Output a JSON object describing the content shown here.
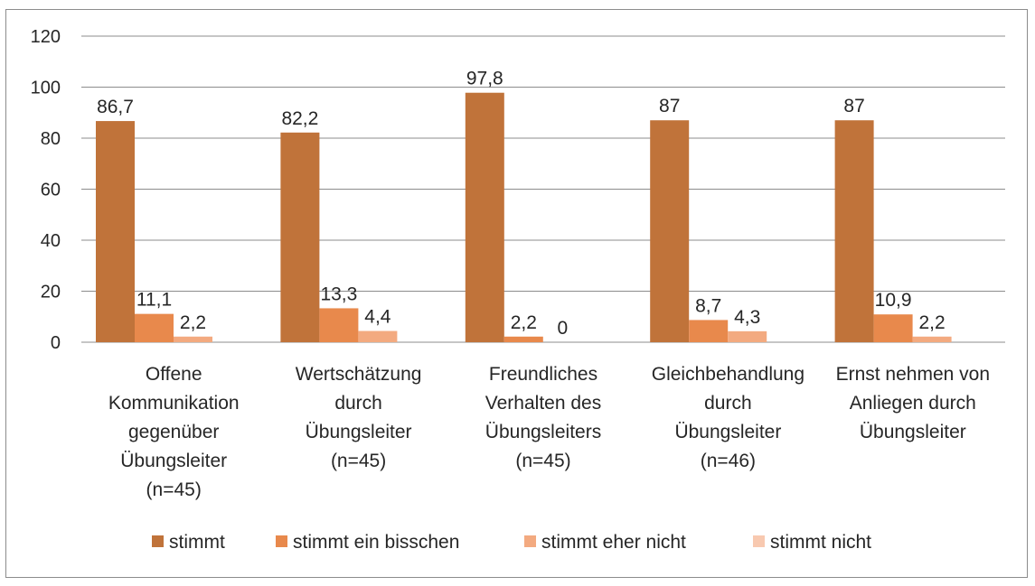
{
  "chart_data": {
    "type": "bar",
    "title": "",
    "xlabel": "",
    "ylabel": "",
    "ylim": [
      0,
      120
    ],
    "yticks": [
      0,
      20,
      40,
      60,
      80,
      100,
      120
    ],
    "grid": true,
    "legend_position": "bottom",
    "categories": [
      [
        "Offene",
        "Kommunikation",
        "gegenüber",
        "Übungsleiter",
        "(n=45)"
      ],
      [
        "Wertschätzung",
        "durch",
        "Übungsleiter",
        "(n=45)"
      ],
      [
        "Freundliches",
        "Verhalten des",
        "Übungsleiters",
        "(n=45)"
      ],
      [
        "Gleichbehandlung",
        "durch",
        "Übungsleiter",
        "(n=46)"
      ],
      [
        "Ernst nehmen von",
        "Anliegen durch",
        "Übungsleiter"
      ]
    ],
    "series": [
      {
        "name": "stimmt",
        "color": "#c0733a",
        "values": [
          86.7,
          82.2,
          97.8,
          87,
          87
        ],
        "labels": [
          "86,7",
          "82,2",
          "97,8",
          "87",
          "87"
        ]
      },
      {
        "name": "stimmt ein bisschen",
        "color": "#e8894c",
        "values": [
          11.1,
          13.3,
          2.2,
          8.7,
          10.9
        ],
        "labels": [
          "11,1",
          "13,3",
          "2,2",
          "8,7",
          "10,9"
        ]
      },
      {
        "name": "stimmt eher nicht",
        "color": "#f3aa80",
        "values": [
          2.2,
          4.4,
          0,
          4.3,
          2.2
        ],
        "labels": [
          "2,2",
          "4,4",
          "0",
          "4,3",
          "2,2"
        ]
      },
      {
        "name": "stimmt nicht",
        "color": "#f8c9b0",
        "values": [
          0,
          0,
          0,
          0,
          0
        ],
        "labels": [
          "",
          "",
          "",
          "",
          ""
        ]
      }
    ]
  }
}
